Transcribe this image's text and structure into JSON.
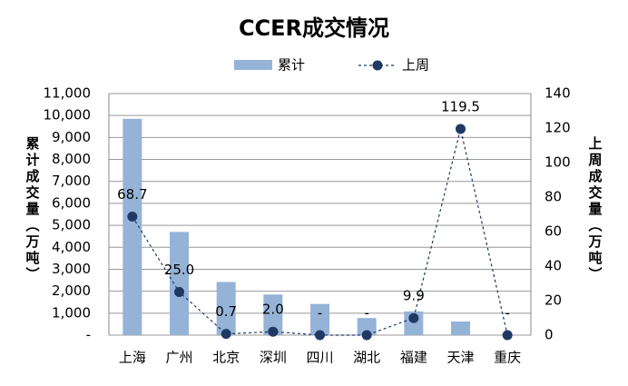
{
  "chart_data": {
    "type": "bar",
    "title": "CCER成交情况",
    "y_label": "累计成交量（万吨）",
    "y2_label": "上周成交量（万吨）",
    "categories": [
      "上海",
      "广州",
      "北京",
      "深圳",
      "四川",
      "湖北",
      "福建",
      "天津",
      "重庆"
    ],
    "series": [
      {
        "name": "累计",
        "type": "bar",
        "color": "#95b3d7",
        "values": [
          9850,
          4700,
          2420,
          1850,
          1420,
          780,
          1080,
          620,
          0
        ]
      },
      {
        "name": "上周",
        "type": "line",
        "axis": "y2",
        "color": "#1f3864",
        "values": [
          68.7,
          25.0,
          0.7,
          2.0,
          0,
          0,
          9.9,
          119.5,
          0
        ],
        "value_labels": [
          "68.7",
          "25.0",
          "0.7",
          "2.0",
          "-",
          "-",
          "9.9",
          "119.5",
          "-"
        ]
      }
    ],
    "ylim": [
      0,
      11000
    ],
    "yticks": [
      {
        "value": 0,
        "label": "-"
      },
      {
        "value": 1000,
        "label": "1,000"
      },
      {
        "value": 2000,
        "label": "2,000"
      },
      {
        "value": 3000,
        "label": "3,000"
      },
      {
        "value": 4000,
        "label": "4,000"
      },
      {
        "value": 5000,
        "label": "5,000"
      },
      {
        "value": 6000,
        "label": "6,000"
      },
      {
        "value": 7000,
        "label": "7,000"
      },
      {
        "value": 8000,
        "label": "8,000"
      },
      {
        "value": 9000,
        "label": "9,000"
      },
      {
        "value": 10000,
        "label": "10,000"
      },
      {
        "value": 11000,
        "label": "11,000"
      }
    ],
    "y2lim": [
      0,
      140
    ],
    "y2ticks": [
      0,
      20,
      40,
      60,
      80,
      100,
      120,
      140
    ],
    "grid": true
  }
}
